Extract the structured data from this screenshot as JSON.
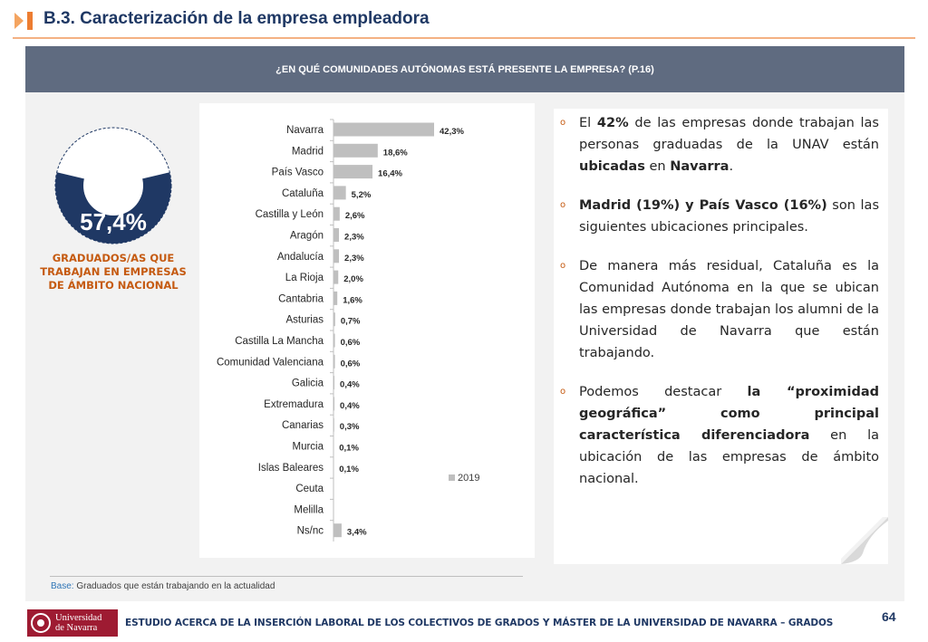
{
  "header": {
    "title": "B.3. Caracterización de la empresa empleadora"
  },
  "question": "¿EN QUÉ COMUNIDADES AUTÓNOMAS ESTÁ PRESENTE LA EMPRESA? (P.16)",
  "donut": {
    "percent_label": "57,4%",
    "value": 0.574,
    "caption": "GRADUADOS/AS QUE TRABAJAN EN EMPRESAS DE ÁMBITO NACIONAL"
  },
  "chart_data": {
    "type": "bar",
    "orientation": "horizontal",
    "categories": [
      "Navarra",
      "Madrid",
      "País Vasco",
      "Cataluña",
      "Castilla y León",
      "Aragón",
      "Andalucía",
      "La Rioja",
      "Cantabria",
      "Asturias",
      "Castilla La Mancha",
      "Comunidad Valenciana",
      "Galicia",
      "Extremadura",
      "Canarias",
      "Murcia",
      "Islas Baleares",
      "Ceuta",
      "Melilla",
      "Ns/nc"
    ],
    "series": [
      {
        "name": "2019",
        "values": [
          42.3,
          18.6,
          16.4,
          5.2,
          2.6,
          2.3,
          2.3,
          2.0,
          1.6,
          0.7,
          0.6,
          0.6,
          0.4,
          0.4,
          0.3,
          0.1,
          0.1,
          null,
          null,
          3.4
        ],
        "labels": [
          "42,3%",
          "18,6%",
          "16,4%",
          "5,2%",
          "2,6%",
          "2,3%",
          "2,3%",
          "2,0%",
          "1,6%",
          "0,7%",
          "0,6%",
          "0,6%",
          "0,4%",
          "0,4%",
          "0,3%",
          "0,1%",
          "0,1%",
          "",
          "",
          "3,4%"
        ]
      }
    ],
    "legend": "right",
    "bar_color": "#bfbfbf"
  },
  "bullets": [
    [
      {
        "t": "El ",
        "b": false
      },
      {
        "t": "42%",
        "b": true
      },
      {
        "t": " de las empresas donde trabajan las personas graduadas de la UNAV están ",
        "b": false
      },
      {
        "t": "ubicadas",
        "b": true
      },
      {
        "t": " en ",
        "b": false
      },
      {
        "t": "Navarra",
        "b": true
      },
      {
        "t": ".",
        "b": false
      }
    ],
    [
      {
        "t": "Madrid (19%) y País Vasco (16%)",
        "b": true
      },
      {
        "t": " son las siguientes ubicaciones principales.",
        "b": false
      }
    ],
    [
      {
        "t": "De manera más residual, Cataluña es la Comunidad Autónoma en la que se ubican las empresas donde trabajan los alumni de la Universidad de Navarra que están trabajando.",
        "b": false
      }
    ],
    [
      {
        "t": "Podemos destacar ",
        "b": false
      },
      {
        "t": "la “proximidad geográfica” como principal característica diferenciadora",
        "b": true
      },
      {
        "t": " en la ubicación de las empresas de ámbito nacional.",
        "b": false
      }
    ]
  ],
  "bullet_marker": "o",
  "base": {
    "label": "Base:",
    "text": " Graduados que están trabajando en la actualidad"
  },
  "footer": {
    "logo_line1": "Universidad",
    "logo_line2": "de Navarra",
    "text": "ESTUDIO ACERCA DE LA INSERCIÓN LABORAL DE LOS COLECTIVOS DE GRADOS Y MÁSTER DE LA UNIVERSIDAD DE NAVARRA – GRADOS",
    "page_number": "64"
  },
  "colors": {
    "title": "#1f3864",
    "accent": "#f4b183",
    "band": "#5f6b80",
    "donut": "#1f3864",
    "caption": "#c55a11"
  }
}
